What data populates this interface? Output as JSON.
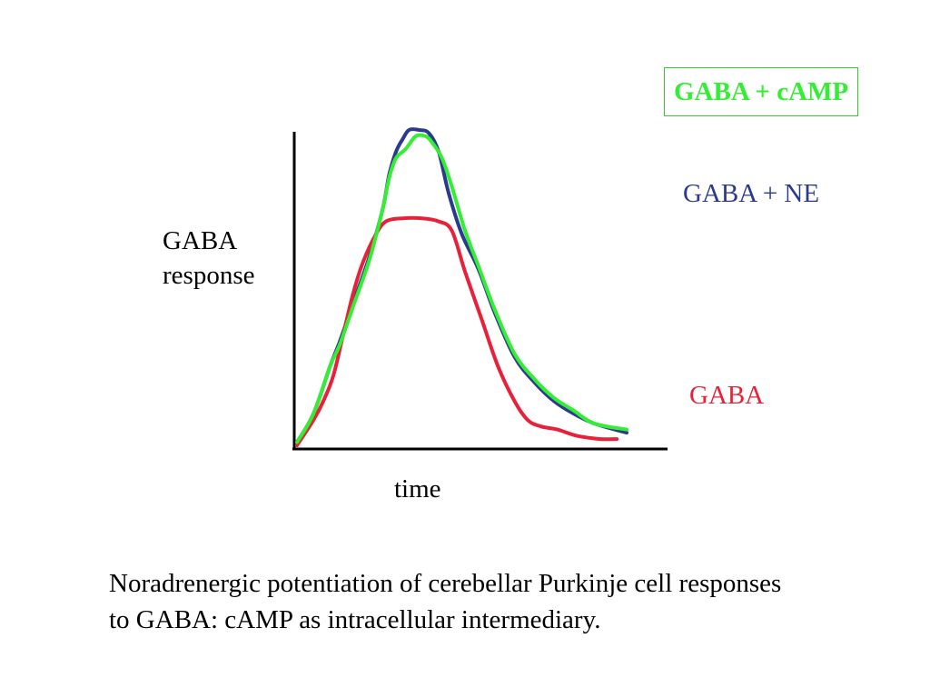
{
  "chart_data": {
    "type": "line",
    "xlabel": "time",
    "ylabel_lines": [
      "GABA",
      "response"
    ],
    "xlim": [
      0,
      100
    ],
    "ylim": [
      0,
      100
    ],
    "grid": false,
    "legend_placement": "right",
    "series": [
      {
        "name": "GABA + NE",
        "color": "#2b3a8f",
        "x": [
          0,
          5,
          10,
          13,
          17,
          22,
          26,
          28,
          30,
          32,
          34,
          37,
          40,
          43,
          46,
          50,
          55,
          60,
          66,
          72,
          78,
          84,
          90,
          100
        ],
        "y": [
          1,
          10,
          25,
          33,
          45,
          60,
          75,
          86,
          93,
          97,
          100,
          100,
          99,
          93,
          80,
          67,
          56,
          42,
          28,
          20,
          14,
          10,
          7,
          4
        ]
      },
      {
        "name": "GABA",
        "color": "#e8213a",
        "x": [
          0,
          5,
          8,
          11,
          14,
          17,
          20,
          24,
          27,
          32,
          38,
          43,
          47,
          51,
          56,
          61,
          66,
          70,
          74,
          79,
          85,
          92,
          97
        ],
        "y": [
          0,
          8,
          14,
          22,
          35,
          48,
          58,
          67,
          71,
          72,
          72,
          71,
          68,
          55,
          40,
          25,
          14,
          8,
          6,
          5,
          3,
          2,
          2
        ]
      },
      {
        "name": "GABA + cAMP",
        "color": "#33ee33",
        "x": [
          0,
          5,
          10,
          13,
          17,
          22,
          26,
          28,
          30,
          33,
          36,
          39,
          41,
          44,
          47,
          51,
          55,
          60,
          66,
          72,
          78,
          84,
          90,
          100
        ],
        "y": [
          1,
          10,
          25,
          32,
          44,
          59,
          75,
          85,
          91,
          94,
          98,
          98,
          96,
          91,
          82,
          68,
          57,
          43,
          29,
          21,
          15,
          11,
          7,
          5
        ]
      }
    ]
  },
  "legend": {
    "camp_label": "GABA + cAMP",
    "ne_label": "GABA + NE",
    "gaba_label": "GABA"
  },
  "caption": {
    "line1": "Noradrenergic potentiation of cerebellar Purkinje cell responses",
    "line2": "to GABA: cAMP as intracellular intermediary."
  }
}
